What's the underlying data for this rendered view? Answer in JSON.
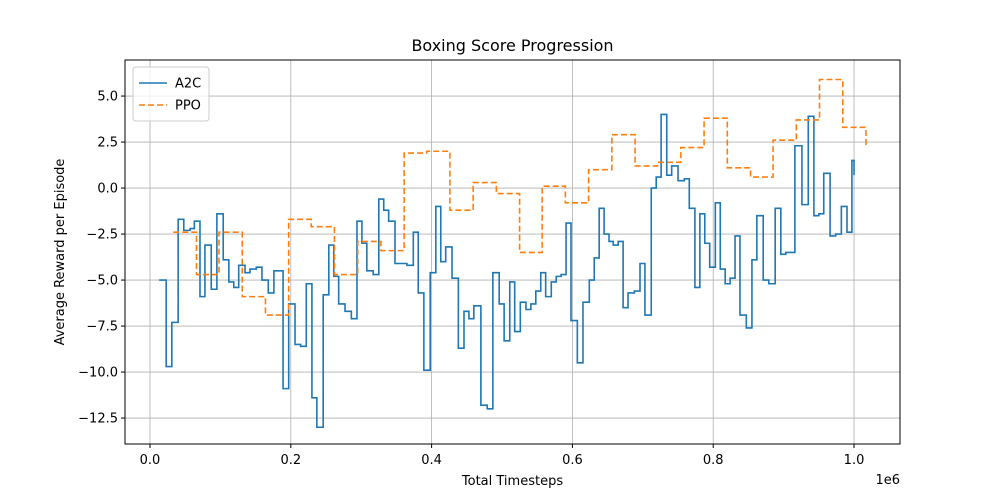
{
  "chart_data": {
    "type": "step",
    "title": "Boxing Score Progression",
    "xlabel": "Total Timesteps",
    "ylabel": "Average Reward per Episode",
    "x_offset_label": "1e6",
    "xlim": [
      -0.0355,
      1.0653
    ],
    "ylim": [
      -13.91,
      6.96
    ],
    "xticks": [
      {
        "value": 0,
        "label": "0.0"
      },
      {
        "value": 0.2,
        "label": "0.2"
      },
      {
        "value": 0.4,
        "label": "0.4"
      },
      {
        "value": 0.6,
        "label": "0.6"
      },
      {
        "value": 0.8,
        "label": "0.8"
      },
      {
        "value": 1.0,
        "label": "1.0"
      }
    ],
    "yticks": [
      {
        "value": -12.5,
        "label": "−12.5"
      },
      {
        "value": -10,
        "label": "−10.0"
      },
      {
        "value": -7.5,
        "label": "−7.5"
      },
      {
        "value": -5,
        "label": "−5.0"
      },
      {
        "value": -2.5,
        "label": "−2.5"
      },
      {
        "value": 0,
        "label": "0.0"
      },
      {
        "value": 2.5,
        "label": "2.5"
      },
      {
        "value": 5,
        "label": "5.0"
      }
    ],
    "grid": true,
    "legend": "upper left",
    "series": [
      {
        "name": "A2C",
        "color": "#1f77b4",
        "dashed": false,
        "x": [
          0.013,
          0.023,
          0.031,
          0.04,
          0.048,
          0.057,
          0.063,
          0.071,
          0.078,
          0.087,
          0.095,
          0.104,
          0.112,
          0.119,
          0.126,
          0.135,
          0.142,
          0.151,
          0.159,
          0.168,
          0.176,
          0.189,
          0.197,
          0.206,
          0.214,
          0.222,
          0.23,
          0.237,
          0.246,
          0.254,
          0.261,
          0.268,
          0.277,
          0.286,
          0.294,
          0.301,
          0.308,
          0.317,
          0.325,
          0.332,
          0.339,
          0.348,
          0.357,
          0.365,
          0.374,
          0.381,
          0.389,
          0.398,
          0.406,
          0.413,
          0.42,
          0.429,
          0.438,
          0.446,
          0.453,
          0.46,
          0.47,
          0.479,
          0.487,
          0.496,
          0.503,
          0.511,
          0.518,
          0.526,
          0.534,
          0.541,
          0.548,
          0.555,
          0.562,
          0.57,
          0.577,
          0.584,
          0.591,
          0.598,
          0.607,
          0.615,
          0.624,
          0.631,
          0.638,
          0.645,
          0.652,
          0.658,
          0.665,
          0.672,
          0.679,
          0.688,
          0.696,
          0.703,
          0.712,
          0.719,
          0.726,
          0.734,
          0.741,
          0.75,
          0.759,
          0.766,
          0.774,
          0.781,
          0.788,
          0.795,
          0.803,
          0.81,
          0.817,
          0.824,
          0.831,
          0.838,
          0.847,
          0.855,
          0.862,
          0.871,
          0.879,
          0.888,
          0.896,
          0.903,
          0.916,
          0.926,
          0.935,
          0.943,
          0.95,
          0.957,
          0.966,
          0.974,
          0.982,
          0.99,
          0.997,
          1.0
        ],
        "values": [
          -5.0,
          -9.7,
          -7.3,
          -1.7,
          -2.3,
          -2.2,
          -1.8,
          -5.9,
          -3.1,
          -5.5,
          -1.4,
          -3.9,
          -5.1,
          -5.4,
          -4.2,
          -4.6,
          -4.4,
          -4.3,
          -5.0,
          -5.7,
          -4.5,
          -10.9,
          -6.3,
          -8.5,
          -8.6,
          -5.2,
          -11.4,
          -13.0,
          -5.8,
          -3.1,
          -4.8,
          -6.3,
          -6.7,
          -7.1,
          -1.8,
          -3.0,
          -4.5,
          -4.7,
          -0.6,
          -1.2,
          -1.8,
          -4.1,
          -4.1,
          -4.2,
          -2.4,
          -5.7,
          -9.9,
          -4.6,
          -1.0,
          -4.0,
          -3.2,
          -4.9,
          -8.7,
          -6.7,
          -7.1,
          -6.4,
          -11.8,
          -12.0,
          -4.6,
          -6.3,
          -8.3,
          -5.1,
          -7.8,
          -6.2,
          -6.6,
          -6.3,
          -5.6,
          -4.6,
          -5.9,
          -5.1,
          -4.8,
          -4.7,
          -1.9,
          -7.2,
          -9.5,
          -6.2,
          -5.0,
          -3.8,
          -1.1,
          -2.5,
          -2.9,
          -3.1,
          -2.9,
          -6.5,
          -5.7,
          -5.6,
          -4.1,
          -6.9,
          0.0,
          0.6,
          4.0,
          0.7,
          1.2,
          0.4,
          0.5,
          -1.1,
          -5.4,
          -1.4,
          -3.0,
          -4.3,
          -0.8,
          -4.4,
          -5.2,
          -4.9,
          -2.6,
          -6.9,
          -7.6,
          -3.9,
          -1.5,
          -5.0,
          -5.2,
          -1.1,
          -3.6,
          -3.5,
          2.3,
          -0.9,
          3.9,
          -1.5,
          -1.4,
          0.8,
          -2.6,
          -2.5,
          -1.0,
          -2.4,
          1.5,
          0.7
        ]
      },
      {
        "name": "PPO",
        "color": "#ff7f0e",
        "dashed": true,
        "x": [
          0.033,
          0.066,
          0.098,
          0.131,
          0.164,
          0.197,
          0.229,
          0.262,
          0.295,
          0.328,
          0.361,
          0.393,
          0.426,
          0.459,
          0.492,
          0.525,
          0.557,
          0.59,
          0.623,
          0.656,
          0.689,
          0.721,
          0.754,
          0.787,
          0.82,
          0.853,
          0.885,
          0.918,
          0.951,
          0.984,
          1.017
        ],
        "values": [
          -2.4,
          -4.7,
          -2.4,
          -5.9,
          -6.9,
          -1.7,
          -2.1,
          -4.7,
          -2.9,
          -3.4,
          1.9,
          2.0,
          -1.2,
          0.3,
          -0.3,
          -3.5,
          0.1,
          -0.8,
          1.0,
          2.9,
          1.2,
          1.4,
          2.2,
          3.8,
          1.1,
          0.6,
          2.6,
          3.7,
          5.9,
          3.3,
          2.2
        ]
      }
    ]
  }
}
